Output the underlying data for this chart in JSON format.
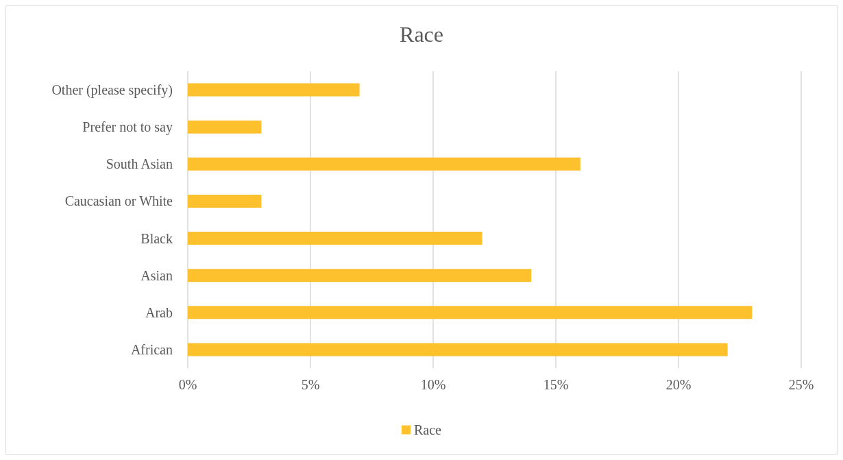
{
  "chart_data": {
    "type": "bar",
    "title": "Race",
    "orientation": "horizontal",
    "categories": [
      "Other (please specify)",
      "Prefer not to say",
      "South Asian",
      "Caucasian or White",
      "Black",
      "Asian",
      "Arab",
      "African"
    ],
    "series": [
      {
        "name": "Race",
        "color": "#fdc12d",
        "values": [
          7,
          3,
          16,
          3,
          12,
          14,
          23,
          22
        ]
      }
    ],
    "xlim": [
      0,
      25
    ],
    "xticks": [
      {
        "value": 0,
        "label": "0%"
      },
      {
        "value": 5,
        "label": "5%"
      },
      {
        "value": 10,
        "label": "10%"
      },
      {
        "value": 15,
        "label": "15%"
      },
      {
        "value": 20,
        "label": "20%"
      },
      {
        "value": 25,
        "label": "25%"
      }
    ],
    "grid": "x",
    "legend": "bottom"
  }
}
